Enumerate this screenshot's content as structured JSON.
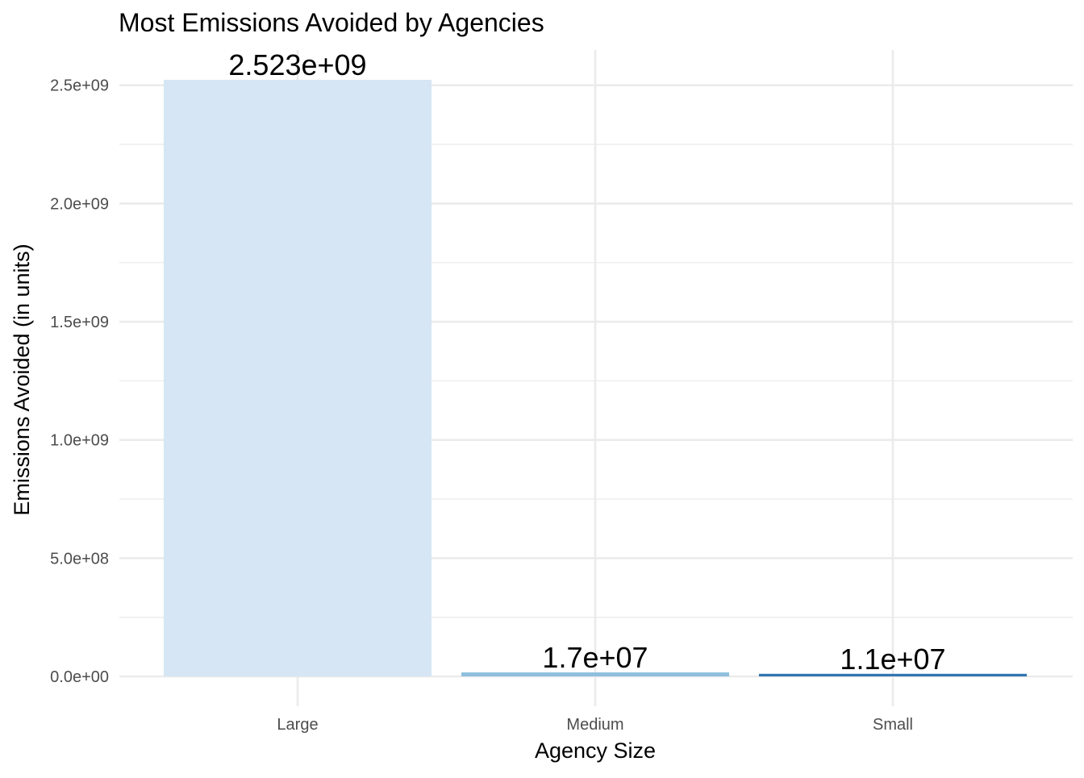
{
  "chart_data": {
    "type": "bar",
    "title": "Most Emissions Avoided by Agencies",
    "xlabel": "Agency Size",
    "ylabel": "Emissions Avoided (in units)",
    "categories": [
      "Large",
      "Medium",
      "Small"
    ],
    "values": [
      2523000000,
      17000000,
      11000000
    ],
    "data_labels": [
      "2.523e+09",
      "1.7e+07",
      "1.1e+07"
    ],
    "bar_colors": [
      "#d6e6f4",
      "#8fbfdd",
      "#3474b3"
    ],
    "ylim": [
      0,
      2523000000
    ],
    "y_ticks": [
      0,
      500000000,
      1000000000,
      1500000000,
      2000000000,
      2500000000
    ],
    "y_tick_labels": [
      "0.0e+00",
      "5.0e+08",
      "1.0e+09",
      "1.5e+09",
      "2.0e+09",
      "2.5e+09"
    ],
    "grid": true,
    "legend": "none"
  }
}
